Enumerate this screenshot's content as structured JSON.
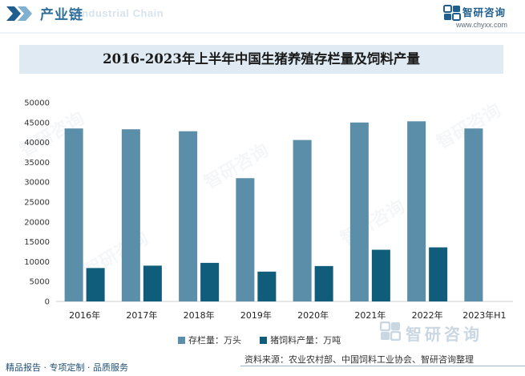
{
  "header": {
    "section_title": "产业链",
    "section_ghost": "Industrial Chain",
    "logo_name": "智研咨询",
    "logo_url": "www.chyxx.com"
  },
  "colors": {
    "series_1": "#5b8ea8",
    "series_2": "#0f5d7a",
    "title_band": "#dfeaf2",
    "brand": "#1f5f8f"
  },
  "chart_data": {
    "type": "bar",
    "title": "2016-2023年上半年中国生猪养殖存栏量及饲料产量",
    "categories": [
      "2016年",
      "2017年",
      "2018年",
      "2019年",
      "2020年",
      "2021年",
      "2022年",
      "2023年H1"
    ],
    "series": [
      {
        "name": "存栏量：万头",
        "values": [
          43500,
          43300,
          42800,
          31000,
          40600,
          45000,
          45300,
          43500
        ]
      },
      {
        "name": "猪饲料产量：万吨",
        "values": [
          8400,
          9000,
          9700,
          7500,
          8900,
          13000,
          13600,
          null
        ]
      }
    ],
    "ylim": [
      0,
      50000
    ],
    "yticks": [
      0,
      5000,
      10000,
      15000,
      20000,
      25000,
      30000,
      35000,
      40000,
      45000,
      50000
    ],
    "grid": false,
    "legend_position": "bottom"
  },
  "footer": {
    "left": "精品报告 · 专项定制 · 品质服务",
    "source": "资料来源：农业农村部、中国饲料工业协会、智研咨询整理"
  },
  "watermark_text": "智研咨询"
}
